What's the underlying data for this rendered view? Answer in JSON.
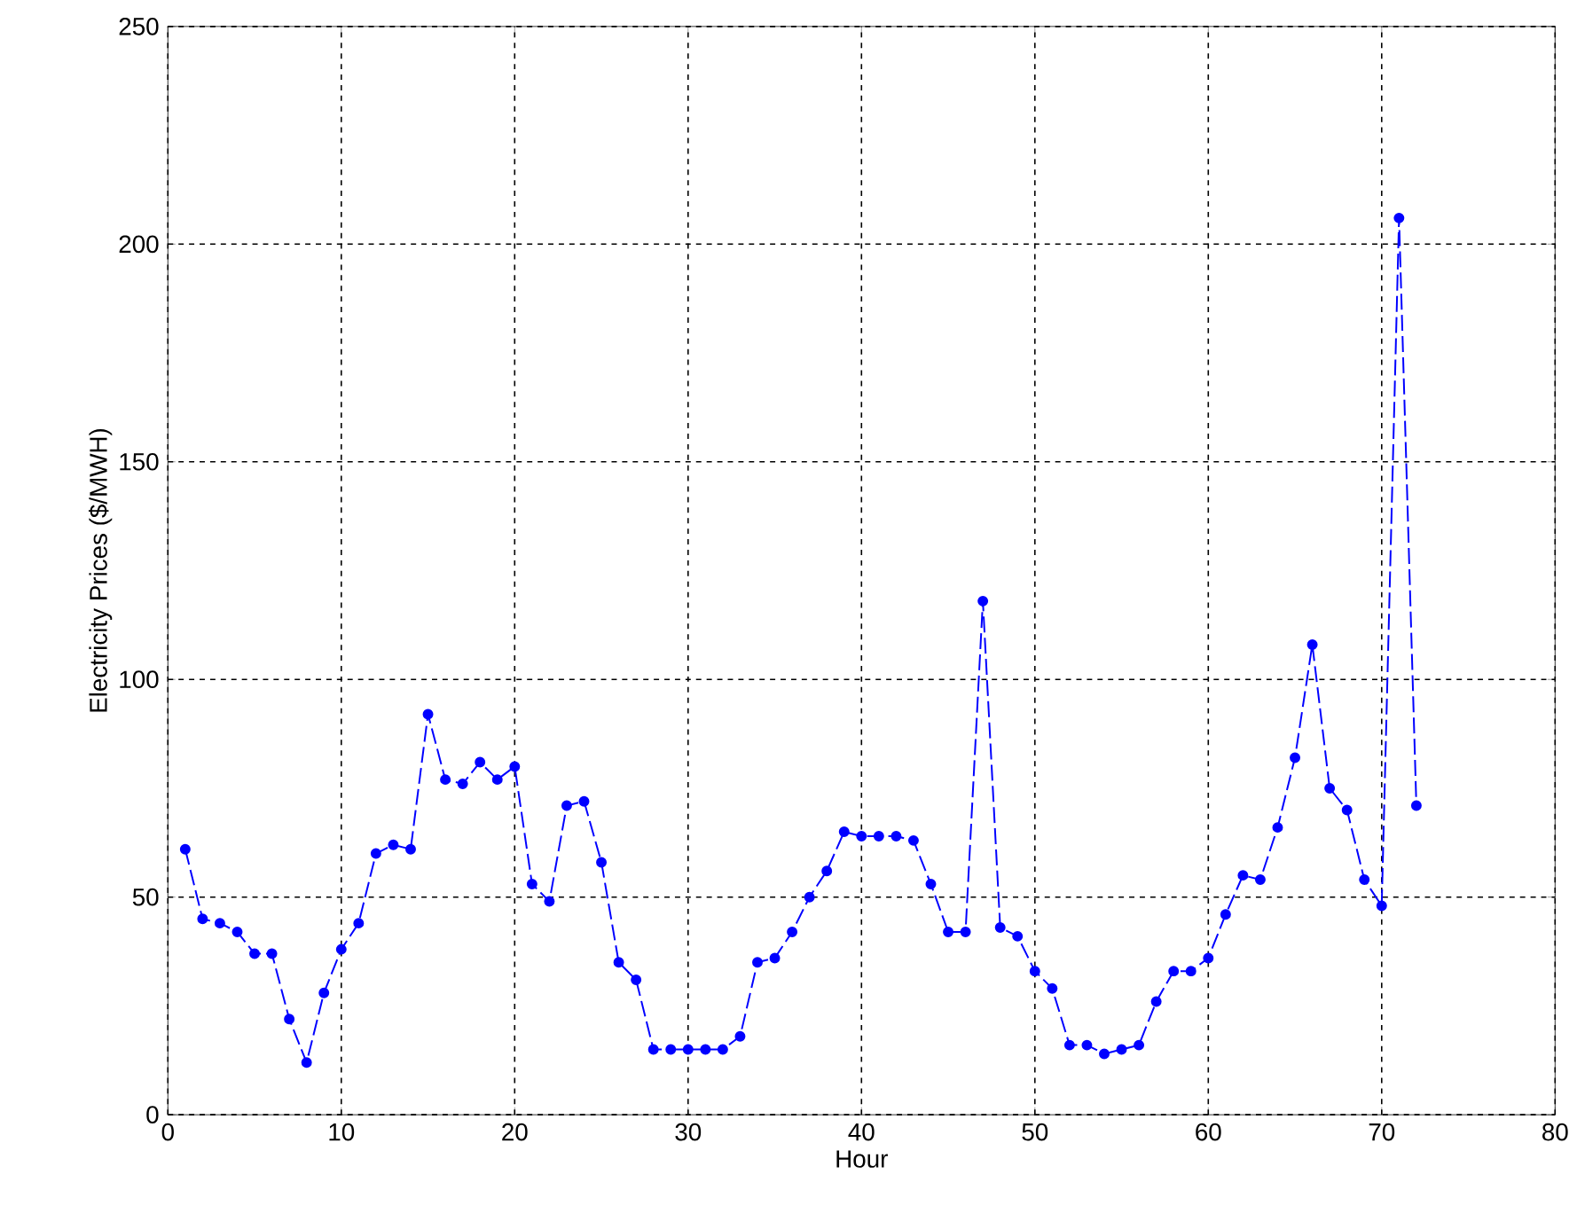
{
  "chart_data": {
    "type": "line",
    "xlabel": "Hour",
    "ylabel": "Electricity Prices ($/MWH)",
    "x": [
      1,
      2,
      3,
      4,
      5,
      6,
      7,
      8,
      9,
      10,
      11,
      12,
      13,
      14,
      15,
      16,
      17,
      18,
      19,
      20,
      21,
      22,
      23,
      24,
      25,
      26,
      27,
      28,
      29,
      30,
      31,
      32,
      33,
      34,
      35,
      36,
      37,
      38,
      39,
      40,
      41,
      42,
      43,
      44,
      45,
      46,
      47,
      48,
      49,
      50,
      51,
      52,
      53,
      54,
      55,
      56,
      57,
      58,
      59,
      60,
      61,
      62,
      63,
      64,
      65,
      66,
      67,
      68,
      69,
      70,
      71,
      72
    ],
    "series": [
      {
        "color": "#0000ff",
        "values": [
          61,
          45,
          44,
          42,
          37,
          37,
          22,
          12,
          28,
          38,
          44,
          60,
          62,
          61,
          92,
          77,
          76,
          81,
          77,
          80,
          53,
          49,
          71,
          72,
          58,
          35,
          31,
          15,
          15,
          15,
          15,
          15,
          18,
          35,
          36,
          42,
          50,
          56,
          65,
          64,
          64,
          64,
          63,
          53,
          42,
          42,
          118,
          43,
          41,
          33,
          29,
          16,
          16,
          14,
          15,
          16,
          26,
          33,
          33,
          36,
          46,
          55,
          54,
          66,
          82,
          108,
          75,
          70,
          54,
          48,
          206,
          71
        ]
      }
    ],
    "xlim": [
      0,
      80
    ],
    "ylim": [
      0,
      250
    ],
    "xticks": [
      0,
      10,
      20,
      30,
      40,
      50,
      60,
      70,
      80
    ],
    "yticks": [
      0,
      50,
      100,
      150,
      200,
      250
    ],
    "grid": true,
    "marker": "circle",
    "line_style": "dashed"
  }
}
